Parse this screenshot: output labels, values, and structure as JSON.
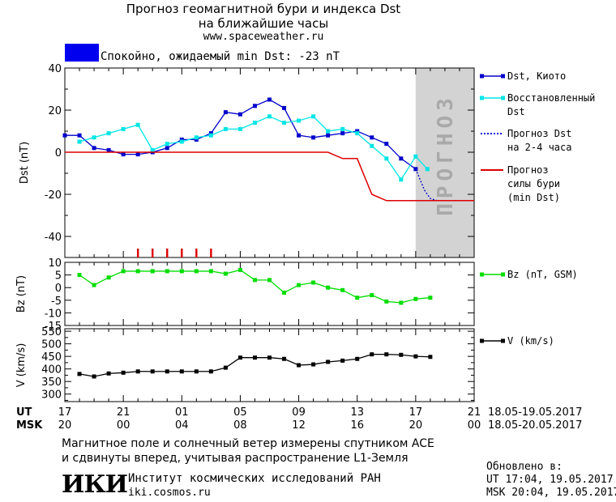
{
  "header": {
    "title_line1": "Прогноз геомагнитной бури и индекса Dst",
    "title_line2": "на ближайшие часы",
    "url": "www.spaceweather.ru"
  },
  "status": {
    "text": "Спокойно, ожидаемый min Dst: -23 nT",
    "color": "#0000ee"
  },
  "forecast_band_label": "ПРОГНОЗ",
  "time_axis": {
    "ut_label": "UT",
    "msk_label": "MSK",
    "ut_ticks": [
      "17",
      "21",
      "01",
      "05",
      "09",
      "13",
      "17",
      "21"
    ],
    "msk_ticks": [
      "20",
      "00",
      "04",
      "08",
      "12",
      "16",
      "20",
      "00"
    ],
    "ut_range": "18.05-19.05.2017",
    "msk_range": "18.05-20.05.2017"
  },
  "chart_data": [
    {
      "type": "line",
      "ylabel": "Dst (nT)",
      "ylim": [
        -50,
        40
      ],
      "yticks": [
        40,
        20,
        0,
        -20,
        -40
      ],
      "xlim_hours": [
        0,
        28
      ],
      "forecast_region_hours": [
        24,
        28
      ],
      "series": [
        {
          "name": "Dst, Киото",
          "color": "#0000cc",
          "x": [
            0,
            1,
            2,
            3,
            4,
            5,
            6,
            7,
            8,
            9,
            10,
            11,
            12,
            13,
            14,
            15,
            16,
            17,
            18,
            19,
            20,
            21,
            22,
            23,
            24
          ],
          "y": [
            8,
            8,
            2,
            1,
            -1,
            -1,
            0,
            2,
            6,
            6,
            9,
            19,
            18,
            22,
            25,
            21,
            8,
            7,
            8,
            9,
            10,
            7,
            4,
            -3,
            -8
          ]
        },
        {
          "name": "Восстановленный Dst",
          "color": "#00e5e5",
          "x": [
            1,
            2,
            3,
            4,
            5,
            6,
            7,
            8,
            9,
            10,
            11,
            12,
            13,
            14,
            15,
            16,
            17,
            18,
            19,
            20,
            21,
            22,
            23,
            24,
            24.8
          ],
          "y": [
            5,
            7,
            9,
            11,
            13,
            1,
            4,
            5,
            7,
            8,
            11,
            11,
            14,
            17,
            14,
            15,
            17,
            10,
            11,
            9,
            3,
            -3,
            -13,
            -2,
            -8
          ]
        },
        {
          "name": "Прогноз Dst на 2-4 часа",
          "color": "#0000cc",
          "x": [
            24,
            24.3,
            24.6,
            25,
            25.5,
            26
          ],
          "y": [
            -8,
            -13,
            -18,
            -22,
            -23,
            -23
          ]
        },
        {
          "name": "Прогноз силы бури (min Dst)",
          "color": "#dd0000",
          "x": [
            0,
            18,
            19,
            20,
            21,
            22,
            23,
            24,
            28
          ],
          "y": [
            0,
            0,
            -3,
            -3,
            -20,
            -23,
            -23,
            -23,
            -23
          ]
        }
      ],
      "markers_hours": [
        5,
        6,
        7,
        8,
        9,
        10
      ]
    },
    {
      "type": "line",
      "ylabel": "Bz (nT)",
      "ylim": [
        -15,
        10
      ],
      "yticks": [
        10,
        5,
        0,
        -5,
        -10,
        -15
      ],
      "series": [
        {
          "name": "Bz (nT, GSM)",
          "color": "#00dd00",
          "x": [
            1,
            2,
            3,
            4,
            5,
            6,
            7,
            8,
            9,
            10,
            11,
            12,
            13,
            14,
            15,
            16,
            17,
            18,
            19,
            20,
            21,
            22,
            23,
            24,
            25
          ],
          "y": [
            5,
            1,
            4,
            6.5,
            6.5,
            6.5,
            6.5,
            6.5,
            6.5,
            6.5,
            5.5,
            7,
            3,
            3,
            -2,
            1,
            2,
            0,
            -1,
            -4,
            -3,
            -5.5,
            -6,
            -4.5,
            -4
          ]
        }
      ]
    },
    {
      "type": "line",
      "ylabel": "V (km/s)",
      "ylim": [
        270,
        560
      ],
      "yticks": [
        550,
        500,
        450,
        400,
        350,
        300
      ],
      "series": [
        {
          "name": "V (km/s)",
          "color": "#000000",
          "x": [
            1,
            2,
            3,
            4,
            5,
            6,
            7,
            8,
            9,
            10,
            11,
            12,
            13,
            14,
            15,
            16,
            17,
            18,
            19,
            20,
            21,
            22,
            23,
            24,
            25
          ],
          "y": [
            380,
            370,
            382,
            385,
            390,
            390,
            390,
            390,
            390,
            390,
            405,
            445,
            445,
            445,
            440,
            415,
            418,
            428,
            433,
            440,
            458,
            458,
            456,
            450,
            448
          ]
        }
      ]
    }
  ],
  "footer": {
    "line1": "Магнитное поле и солнечный ветер измерены спутником ACE",
    "line2": "и сдвинуты вперед, учитывая распространение L1-Земля"
  },
  "institute": {
    "logo": "ИКИ",
    "name": "Институт космических исследований РАН",
    "url": "iki.cosmos.ru"
  },
  "updated": {
    "label": "Обновлено в:",
    "ut": "UT  17:04, 19.05.2017",
    "msk": "MSK 20:04, 19.05.2017"
  }
}
